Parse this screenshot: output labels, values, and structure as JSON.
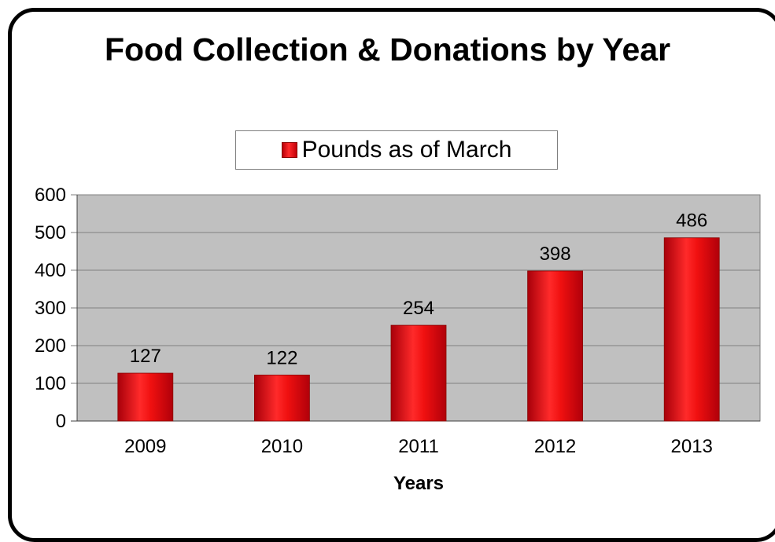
{
  "chart_data": {
    "type": "bar",
    "title": "Food Collection & Donations by Year",
    "categories": [
      "2009",
      "2010",
      "2011",
      "2012",
      "2013"
    ],
    "series": [
      {
        "name": "Pounds as of March",
        "values": [
          127,
          122,
          254,
          398,
          486
        ]
      }
    ],
    "data_labels": [
      "127",
      "122",
      "254",
      "398",
      "486"
    ],
    "xlabel": "Years",
    "ylabel": "",
    "ylim": [
      0,
      600
    ],
    "yticks": [
      "0",
      "100",
      "200",
      "300",
      "400",
      "500",
      "600"
    ],
    "grid": true,
    "legend_position": "top",
    "colors": {
      "bar": "#e8000f",
      "plot_background": "#c0c0c0",
      "gridline": "#7f7f7f"
    }
  }
}
